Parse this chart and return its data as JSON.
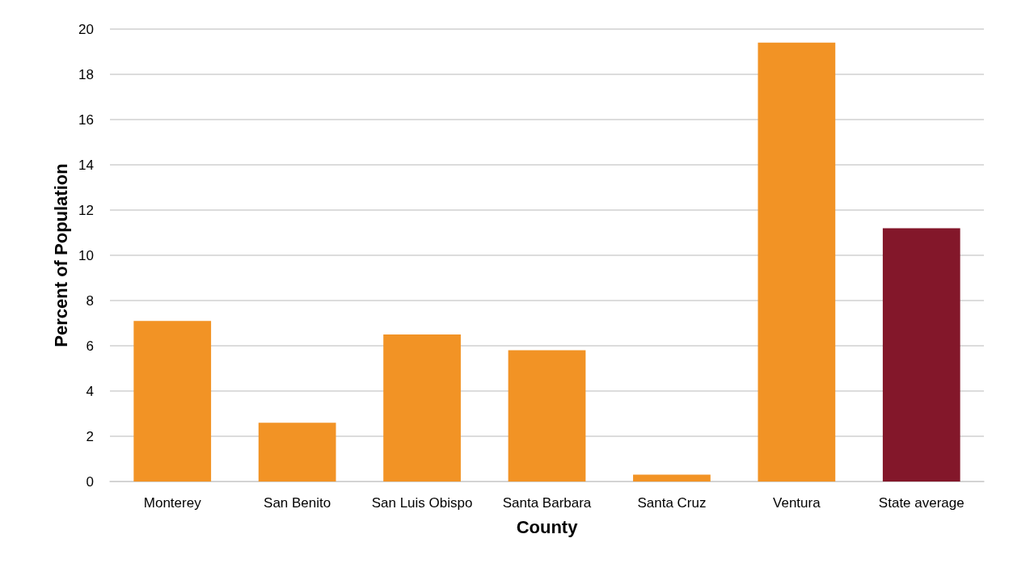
{
  "chart_data": {
    "type": "bar",
    "xlabel": "County",
    "ylabel": "Percent of Population",
    "categories": [
      "Monterey",
      "San Benito",
      "San Luis Obispo",
      "Santa Barbara",
      "Santa Cruz",
      "Ventura",
      "State average"
    ],
    "values": [
      7.1,
      2.6,
      6.5,
      5.8,
      0.3,
      19.4,
      11.2
    ],
    "colors": [
      "#f29325",
      "#f29325",
      "#f29325",
      "#f29325",
      "#f29325",
      "#f29325",
      "#83172a"
    ],
    "ylim": [
      0,
      20
    ],
    "yticks": [
      0,
      2,
      4,
      6,
      8,
      10,
      12,
      14,
      16,
      18,
      20
    ],
    "grid": "y"
  }
}
